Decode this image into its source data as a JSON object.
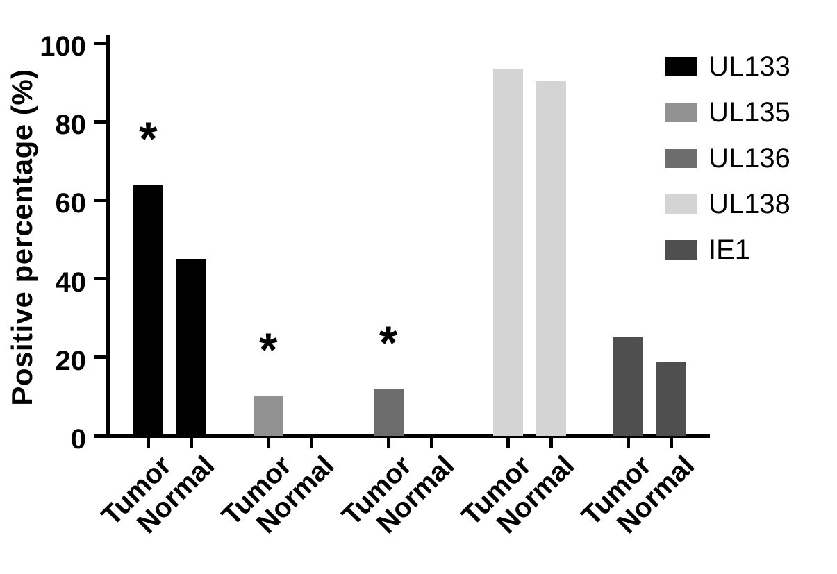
{
  "chart_data": {
    "type": "bar",
    "title": "",
    "xlabel": "",
    "ylabel": "Positive percentage (%)",
    "ylim": [
      0,
      100
    ],
    "yticks": [
      0,
      20,
      40,
      60,
      80,
      100
    ],
    "grid": false,
    "legend_position": "top-right",
    "categories": [
      "UL133",
      "UL135",
      "UL136",
      "UL138",
      "IE1"
    ],
    "category_colors": [
      "#000000",
      "#929292",
      "#6d6d6d",
      "#d4d4d4",
      "#4f4f4f"
    ],
    "series": [
      {
        "name": "Tumor",
        "values": [
          64,
          10.3,
          12,
          93.5,
          25.3
        ]
      },
      {
        "name": "Normal",
        "values": [
          45,
          0,
          0,
          90.3,
          18.7
        ]
      }
    ],
    "value_unit": "%",
    "annotations": [
      {
        "category": "UL133",
        "series": "Tumor",
        "symbol": "*"
      },
      {
        "category": "UL135",
        "series": "Tumor",
        "symbol": "*"
      },
      {
        "category": "UL136",
        "series": "Tumor",
        "symbol": "*"
      }
    ],
    "legend": [
      {
        "label": "UL133",
        "color": "#000000"
      },
      {
        "label": "UL135",
        "color": "#929292"
      },
      {
        "label": "UL136",
        "color": "#6d6d6d"
      },
      {
        "label": "UL138",
        "color": "#d4d4d4"
      },
      {
        "label": "IE1",
        "color": "#4f4f4f"
      }
    ]
  }
}
